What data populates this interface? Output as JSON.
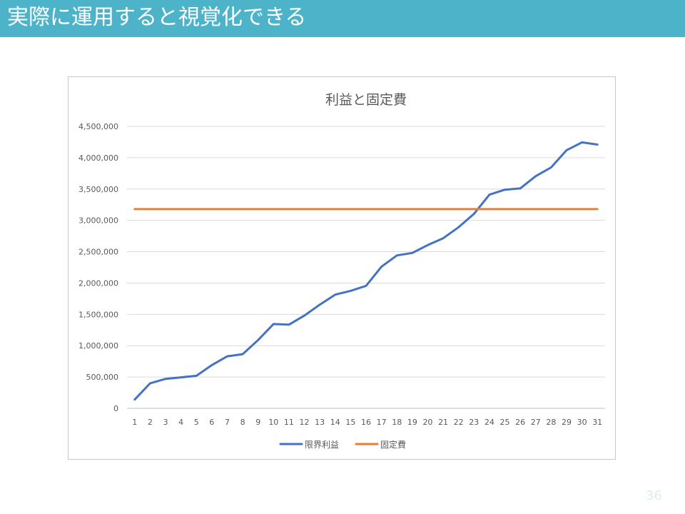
{
  "slide": {
    "title": "実際に運用すると視覚化できる",
    "page_number": "36"
  },
  "colors": {
    "title_bar": "#4db3c8",
    "series_1": "#4472c4",
    "series_2": "#ed7d31",
    "grid": "#d9d9d9"
  },
  "chart_data": {
    "type": "line",
    "title": "利益と固定費",
    "xlabel": "",
    "ylabel": "",
    "x": [
      1,
      2,
      3,
      4,
      5,
      6,
      7,
      8,
      9,
      10,
      11,
      12,
      13,
      14,
      15,
      16,
      17,
      18,
      19,
      20,
      21,
      22,
      23,
      24,
      25,
      26,
      27,
      28,
      29,
      30,
      31
    ],
    "ylim": [
      0,
      4500000
    ],
    "yticks": [
      0,
      500000,
      1000000,
      1500000,
      2000000,
      2500000,
      3000000,
      3500000,
      4000000,
      4500000
    ],
    "ytick_labels": [
      "0",
      "500,000",
      "1,000,000",
      "1,500,000",
      "2,000,000",
      "2,500,000",
      "3,000,000",
      "3,500,000",
      "4,000,000",
      "4,500,000"
    ],
    "grid": true,
    "legend_position": "bottom",
    "series": [
      {
        "name": "限界利益",
        "color": "#4472c4",
        "values": [
          140000,
          400000,
          470000,
          495000,
          520000,
          690000,
          830000,
          865000,
          1090000,
          1345000,
          1335000,
          1480000,
          1655000,
          1815000,
          1875000,
          1955000,
          2260000,
          2440000,
          2480000,
          2605000,
          2715000,
          2890000,
          3105000,
          3410000,
          3490000,
          3510000,
          3705000,
          3845000,
          4120000,
          4245000,
          4210000
        ]
      },
      {
        "name": "固定費",
        "color": "#ed7d31",
        "values": [
          3180000,
          3180000,
          3180000,
          3180000,
          3180000,
          3180000,
          3180000,
          3180000,
          3180000,
          3180000,
          3180000,
          3180000,
          3180000,
          3180000,
          3180000,
          3180000,
          3180000,
          3180000,
          3180000,
          3180000,
          3180000,
          3180000,
          3180000,
          3180000,
          3180000,
          3180000,
          3180000,
          3180000,
          3180000,
          3180000,
          3180000
        ]
      }
    ]
  }
}
